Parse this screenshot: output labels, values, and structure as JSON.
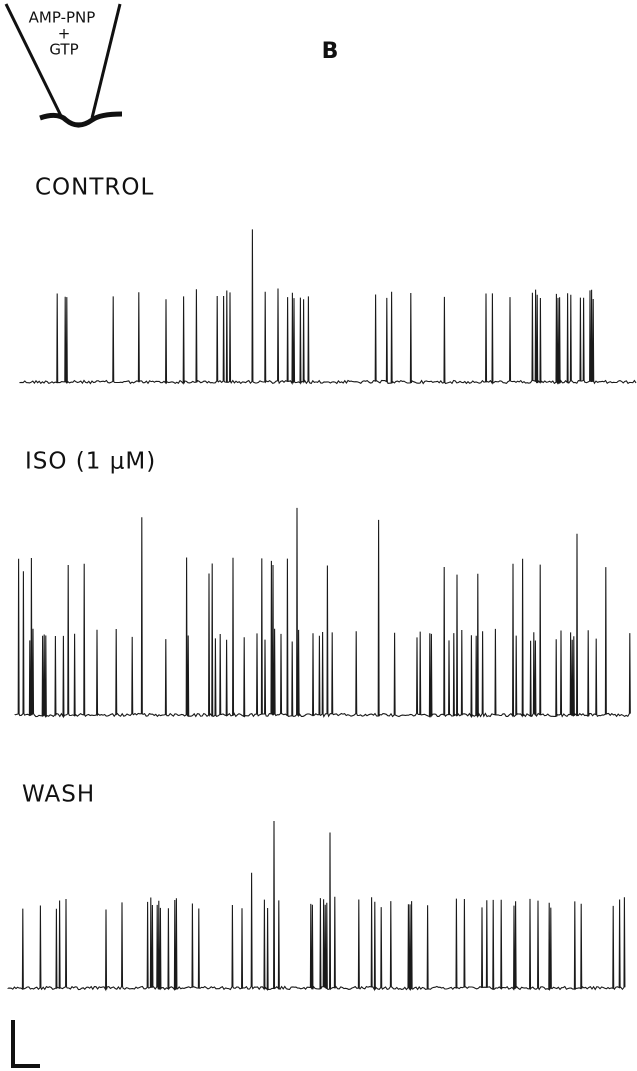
{
  "pipette": {
    "lines": [
      "AMP-PNP",
      "+",
      "GTP"
    ]
  },
  "panel_label": "B",
  "traces": [
    {
      "label": "CONTROL"
    },
    {
      "label": "ISO (1 μM)"
    },
    {
      "label": "WASH"
    }
  ]
}
